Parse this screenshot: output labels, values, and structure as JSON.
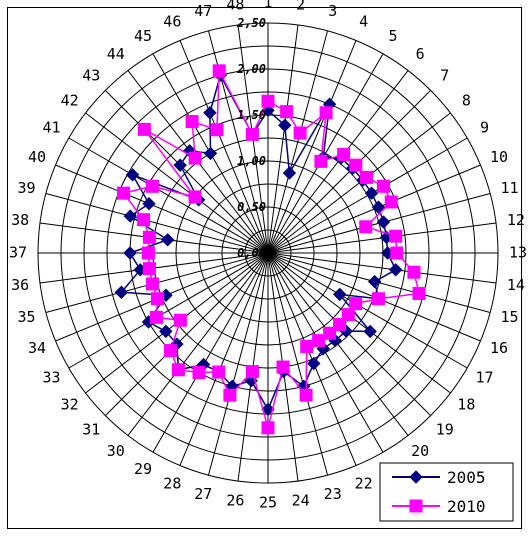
{
  "chart_data": {
    "type": "radar",
    "categories": [
      "1",
      "2",
      "3",
      "4",
      "5",
      "6",
      "7",
      "8",
      "9",
      "10",
      "11",
      "12",
      "13",
      "14",
      "15",
      "16",
      "17",
      "18",
      "19",
      "20",
      "21",
      "22",
      "23",
      "24",
      "25",
      "26",
      "27",
      "28",
      "29",
      "30",
      "31",
      "32",
      "33",
      "34",
      "35",
      "36",
      "37",
      "38",
      "39",
      "40",
      "41",
      "42",
      "43",
      "44",
      "45",
      "46",
      "47",
      "48"
    ],
    "series": [
      {
        "name": "2005",
        "color": "#000080",
        "marker": "diamond",
        "values": [
          1.55,
          1.4,
          0.9,
          1.75,
          1.2,
          1.3,
          1.3,
          1.3,
          1.3,
          1.3,
          1.3,
          1.3,
          1.3,
          1.4,
          1.2,
          1.3,
          0.9,
          1.4,
          1.2,
          1.2,
          1.2,
          1.3,
          1.5,
          1.3,
          1.7,
          1.4,
          1.5,
          1.4,
          1.4,
          1.6,
          1.4,
          1.4,
          1.5,
          1.2,
          1.65,
          1.4,
          1.5,
          1.1,
          1.55,
          1.4,
          1.7,
          0.95,
          1.35,
          1.4,
          1.25,
          1.65,
          2.0,
          1.3
        ]
      },
      {
        "name": "2010",
        "color": "#ff00ff",
        "marker": "square",
        "values": [
          1.65,
          1.55,
          1.35,
          1.65,
          1.15,
          1.35,
          1.35,
          1.35,
          1.45,
          1.45,
          1.1,
          1.4,
          1.4,
          1.6,
          1.7,
          1.3,
          1.1,
          1.1,
          1.1,
          1.1,
          1.1,
          1.1,
          1.6,
          1.25,
          1.9,
          1.3,
          1.6,
          1.4,
          1.5,
          1.6,
          1.5,
          1.2,
          1.4,
          1.3,
          1.3,
          1.3,
          1.3,
          1.3,
          1.4,
          1.7,
          1.45,
          1.0,
          1.9,
          1.3,
          1.65,
          1.45,
          2.05,
          1.3
        ]
      }
    ],
    "radial_axis": {
      "range": [
        0,
        2.5
      ],
      "ticks": [
        "0,00",
        "0,50",
        "1,00",
        "1,50",
        "2,00",
        "2,50"
      ],
      "tick_values": [
        0,
        0.5,
        1.0,
        1.5,
        2.0,
        2.5
      ]
    },
    "legend": {
      "placement": "bottom-right",
      "entries": [
        "2005",
        "2010"
      ]
    },
    "grid": true
  }
}
